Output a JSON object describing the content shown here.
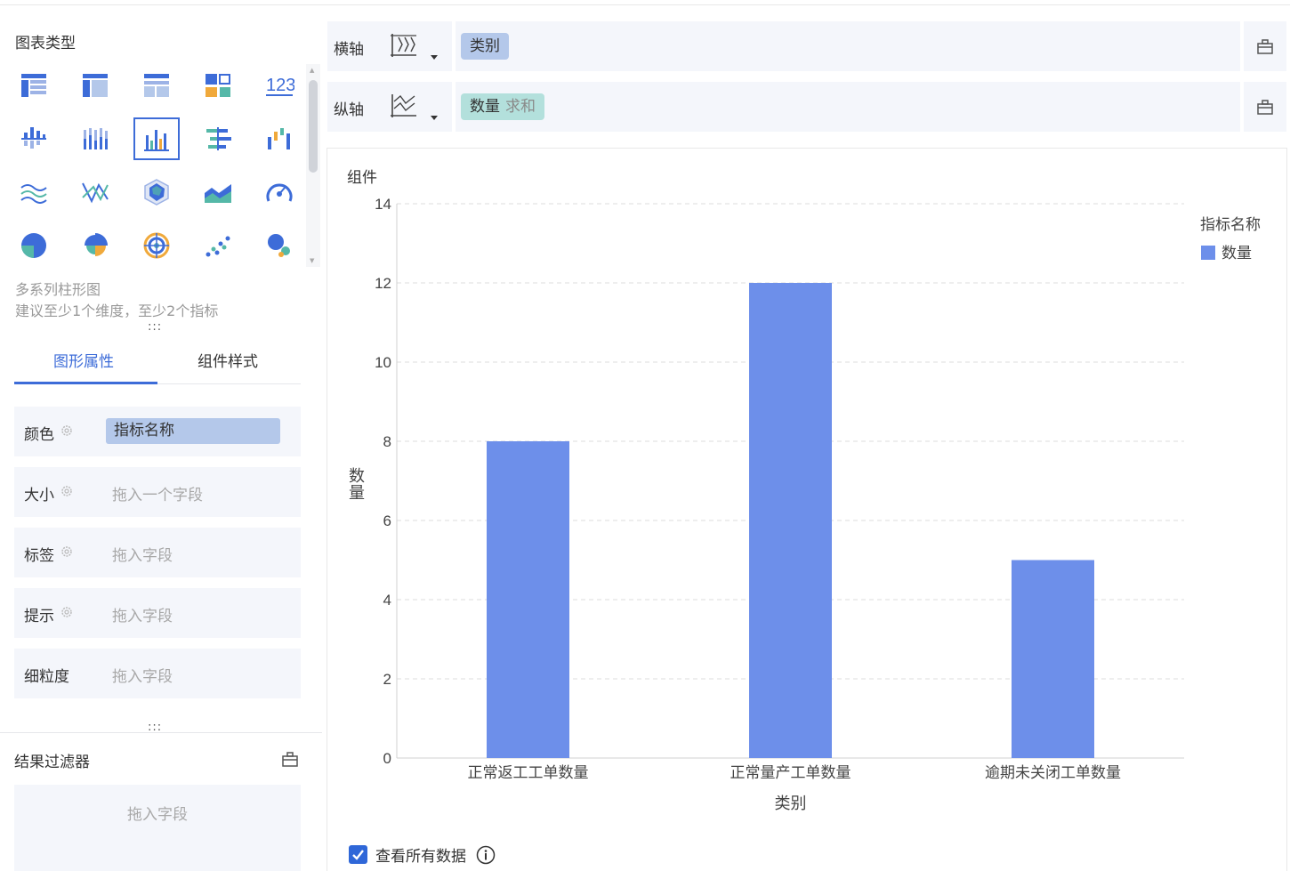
{
  "left_panel": {
    "chart_type_title": "图表类型",
    "chart_types": [
      {
        "name": "table-icon"
      },
      {
        "name": "pivot-table-icon"
      },
      {
        "name": "detail-table-icon"
      },
      {
        "name": "kpi-card-icon"
      },
      {
        "name": "number-icon",
        "text": "123"
      },
      {
        "name": "grouped-bar-icon"
      },
      {
        "name": "stacked-bar-icon"
      },
      {
        "name": "multi-series-bar-icon",
        "selected": true
      },
      {
        "name": "horizontal-bar-icon"
      },
      {
        "name": "waterfall-icon"
      },
      {
        "name": "line-chart-icon"
      },
      {
        "name": "scatter-line-icon"
      },
      {
        "name": "radar-icon"
      },
      {
        "name": "area-chart-icon"
      },
      {
        "name": "gauge-icon"
      },
      {
        "name": "pie-chart-icon"
      },
      {
        "name": "rose-chart-icon"
      },
      {
        "name": "donut-target-icon"
      },
      {
        "name": "scatter-icon"
      },
      {
        "name": "bubble-icon"
      }
    ],
    "selected_chart_name": "多系列柱形图",
    "selected_chart_hint": "建议至少1个维度，至少2个指标",
    "resize_handle": ":::",
    "tabs": [
      {
        "label": "图形属性",
        "active": true
      },
      {
        "label": "组件样式",
        "active": false
      }
    ],
    "properties": [
      {
        "label": "颜色",
        "value": "指标名称",
        "placeholder": ""
      },
      {
        "label": "大小",
        "value": "",
        "placeholder": "拖入一个字段"
      },
      {
        "label": "标签",
        "value": "",
        "placeholder": "拖入字段"
      },
      {
        "label": "提示",
        "value": "",
        "placeholder": "拖入字段"
      },
      {
        "label": "细粒度",
        "value": "",
        "placeholder": "拖入字段"
      }
    ],
    "filter": {
      "title": "结果过滤器",
      "placeholder": "拖入字段"
    }
  },
  "x_axis": {
    "label": "横轴",
    "field": "类别"
  },
  "y_axis": {
    "label": "纵轴",
    "field": "数量",
    "aggregation": "求和"
  },
  "card": {
    "title": "组件",
    "view_all_label": "查看所有数据",
    "view_all_checked": true
  },
  "colors": {
    "accent": "#3d6cd8",
    "bar": "#6d8fea",
    "pill_dimension": "#b4c8ea",
    "pill_measure": "#b3e0dc"
  },
  "chart_data": {
    "type": "bar",
    "categories": [
      "正常返工工单数量",
      "正常量产工单数量",
      "逾期未关闭工单数量"
    ],
    "series": [
      {
        "name": "数量",
        "values": [
          8,
          12,
          5
        ]
      }
    ],
    "xlabel": "类别",
    "ylabel": "数量",
    "ylim": [
      0,
      14
    ],
    "yticks": [
      0,
      2,
      4,
      6,
      8,
      10,
      12,
      14
    ],
    "legend_title": "指标名称",
    "legend_position": "top-right",
    "grid": true
  }
}
